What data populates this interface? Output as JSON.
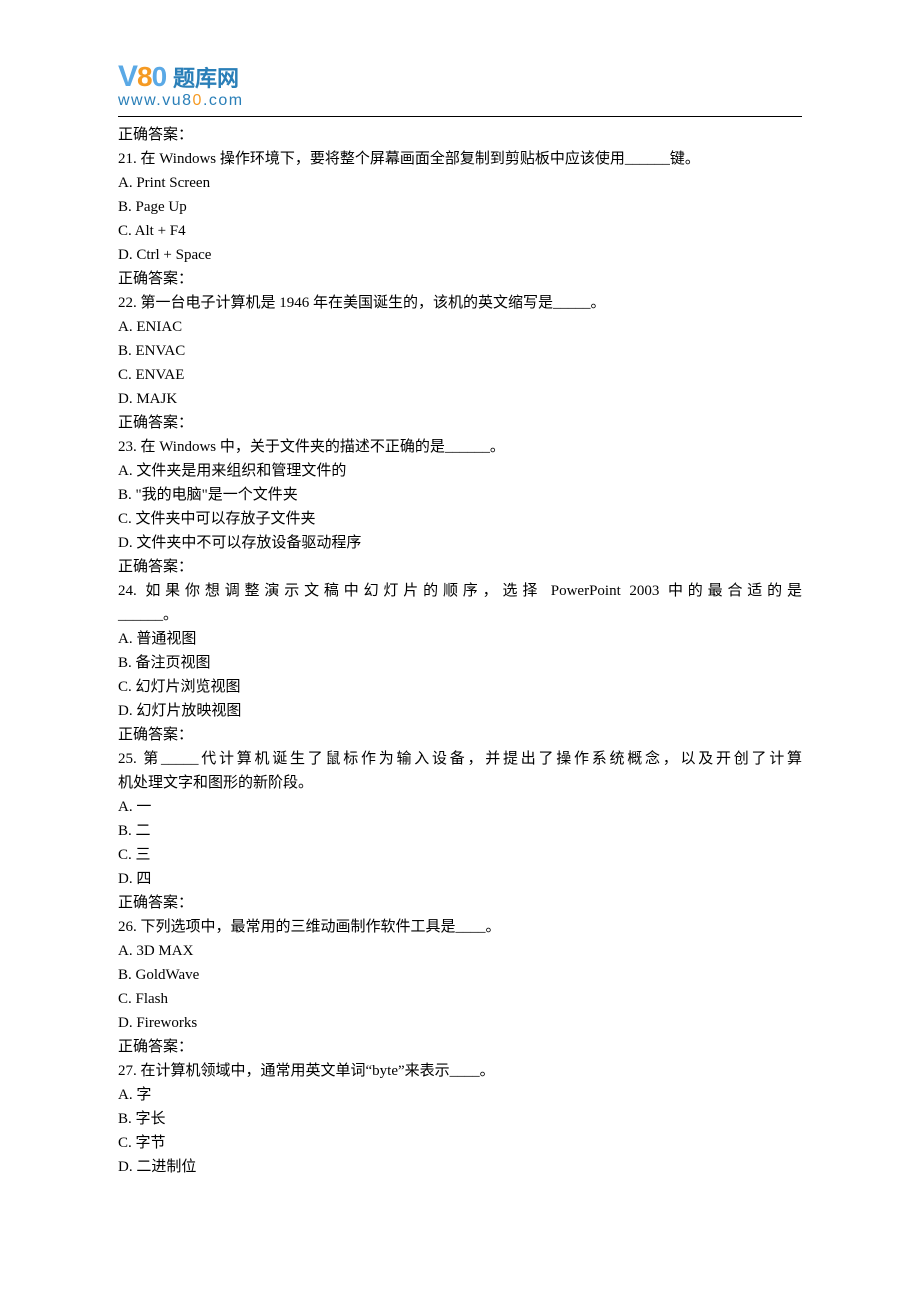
{
  "logo": {
    "brand_cn": "题库网",
    "url_prefix": "www.vu8",
    "url_o": "0",
    "url_suffix": ".com",
    "colors": {
      "blue": "#2a7fb8",
      "light_blue": "#5aa9e6",
      "orange": "#f59a23"
    }
  },
  "answer_label": "正确答案：",
  "questions": [
    {
      "num": "21.",
      "stem": "在 Windows 操作环境下，要将整个屏幕画面全部复制到剪贴板中应该使用______键。",
      "justify": false,
      "options": [
        "A. Print Screen",
        "B. Page Up",
        "C. Alt + F4",
        "D. Ctrl + Space"
      ]
    },
    {
      "num": "22.",
      "stem": "第一台电子计算机是 1946 年在美国诞生的，该机的英文缩写是_____。",
      "justify": false,
      "options": [
        "A. ENIAC",
        "B. ENVAC",
        "C. ENVAE",
        "D. MAJK"
      ]
    },
    {
      "num": "23.",
      "stem": "在 Windows 中，关于文件夹的描述不正确的是______。",
      "justify": false,
      "options": [
        "A. 文件夹是用来组织和管理文件的",
        "B. \"我的电脑\"是一个文件夹",
        "C. 文件夹中可以存放子文件夹",
        "D. 文件夹中不可以存放设备驱动程序"
      ]
    },
    {
      "num": "24.",
      "stem_lines": [
        {
          "text": "如果你想调整演示文稿中幻灯片的顺序，选择 PowerPoint 2003 中的最合适的是",
          "justify": true,
          "prepend_num": true
        },
        {
          "text": "______。",
          "justify": false
        }
      ],
      "options": [
        "A. 普通视图",
        "B. 备注页视图",
        "C. 幻灯片浏览视图",
        "D. 幻灯片放映视图"
      ]
    },
    {
      "num": "25.",
      "stem_lines": [
        {
          "text": "第_____代计算机诞生了鼠标作为输入设备，并提出了操作系统概念，以及开创了计算",
          "justify": true,
          "prepend_num": true
        },
        {
          "text": "机处理文字和图形的新阶段。",
          "justify": false
        }
      ],
      "options": [
        "A. 一",
        "B. 二",
        "C. 三",
        "D. 四"
      ]
    },
    {
      "num": "26.",
      "stem": "下列选项中，最常用的三维动画制作软件工具是____。",
      "justify": false,
      "options": [
        "A. 3D MAX",
        "B. GoldWave",
        "C. Flash",
        "D. Fireworks"
      ]
    },
    {
      "num": "27.",
      "stem": "在计算机领域中，通常用英文单词“byte”来表示____。",
      "justify": false,
      "options": [
        "A. 字",
        "B. 字长",
        "C. 字节",
        "D. 二进制位"
      ],
      "no_answer_after": true
    }
  ]
}
